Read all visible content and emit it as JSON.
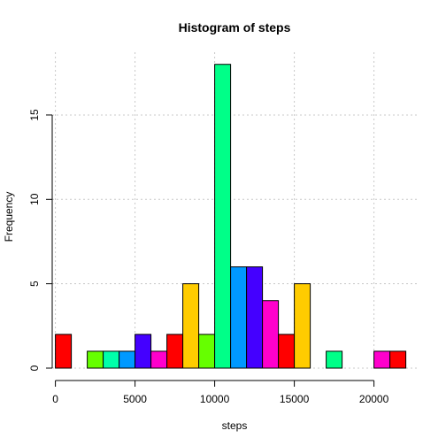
{
  "chart_data": {
    "type": "bar",
    "title": "Histogram of steps",
    "xlabel": "steps",
    "ylabel": "Frequency",
    "xlim": [
      -200,
      22800
    ],
    "ylim": [
      0,
      18.72
    ],
    "x_ticks": [
      0,
      5000,
      10000,
      15000,
      20000
    ],
    "y_ticks": [
      0,
      5,
      10,
      15
    ],
    "grid": true,
    "bin_width": 1000,
    "bins": [
      {
        "start": 0,
        "end": 1000,
        "count": 2,
        "color": "#ff0000"
      },
      {
        "start": 1000,
        "end": 2000,
        "count": 0,
        "color": "#ff9900"
      },
      {
        "start": 2000,
        "end": 3000,
        "count": 1,
        "color": "#66ff00"
      },
      {
        "start": 3000,
        "end": 4000,
        "count": 1,
        "color": "#00ffaa"
      },
      {
        "start": 4000,
        "end": 5000,
        "count": 1,
        "color": "#0099ff"
      },
      {
        "start": 5000,
        "end": 6000,
        "count": 2,
        "color": "#4400ff"
      },
      {
        "start": 6000,
        "end": 7000,
        "count": 1,
        "color": "#ff00cc"
      },
      {
        "start": 7000,
        "end": 8000,
        "count": 2,
        "color": "#ff0000"
      },
      {
        "start": 8000,
        "end": 9000,
        "count": 5,
        "color": "#ffcc00"
      },
      {
        "start": 9000,
        "end": 10000,
        "count": 2,
        "color": "#66ff00"
      },
      {
        "start": 10000,
        "end": 11000,
        "count": 18,
        "color": "#00ff88"
      },
      {
        "start": 11000,
        "end": 12000,
        "count": 6,
        "color": "#0099ff"
      },
      {
        "start": 12000,
        "end": 13000,
        "count": 6,
        "color": "#4400ff"
      },
      {
        "start": 13000,
        "end": 14000,
        "count": 4,
        "color": "#ff00cc"
      },
      {
        "start": 14000,
        "end": 15000,
        "count": 2,
        "color": "#ff0000"
      },
      {
        "start": 15000,
        "end": 16000,
        "count": 5,
        "color": "#ffcc00"
      },
      {
        "start": 16000,
        "end": 17000,
        "count": 0,
        "color": "#66ff00"
      },
      {
        "start": 17000,
        "end": 18000,
        "count": 1,
        "color": "#00ff88"
      },
      {
        "start": 18000,
        "end": 19000,
        "count": 0,
        "color": "#0099ff"
      },
      {
        "start": 19000,
        "end": 20000,
        "count": 0,
        "color": "#4400ff"
      },
      {
        "start": 20000,
        "end": 21000,
        "count": 1,
        "color": "#ff00cc"
      },
      {
        "start": 21000,
        "end": 22000,
        "count": 1,
        "color": "#ff0000"
      }
    ]
  }
}
